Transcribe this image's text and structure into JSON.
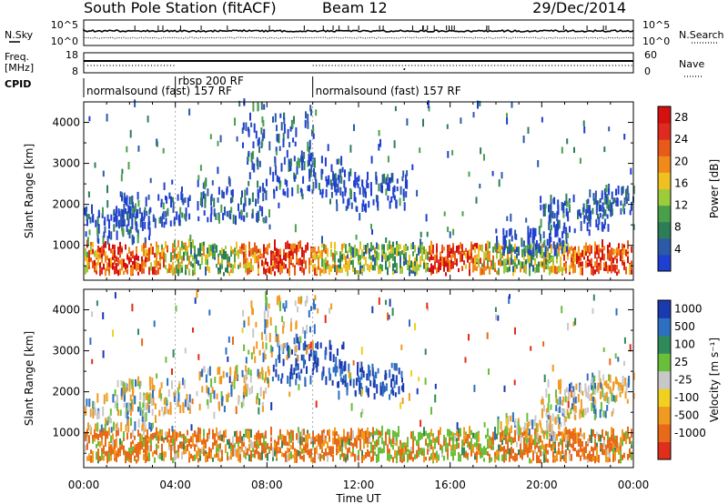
{
  "header": {
    "station": "South Pole Station (fitACF)",
    "beam": "Beam 12",
    "date": "29/Dec/2014"
  },
  "summary": {
    "nsky_label": "N.Sky",
    "nsky_ticks": [
      "10^5",
      "10^0"
    ],
    "nsearch_label": "N.Search",
    "nsearch_ticks": [
      "10^5",
      "10^0"
    ],
    "freq_label_1": "Freq.",
    "freq_label_2": "[MHz]",
    "freq_ticks": [
      "18",
      "8"
    ],
    "nave_label": "Nave",
    "nave_ticks": [
      "60",
      "0"
    ],
    "cpid_label": "CPID",
    "cpid_segments": [
      {
        "name": "normalsound (fast) 157 RF",
        "start": 0,
        "end": 4
      },
      {
        "name": "rbsp 200 RF",
        "start": 4,
        "end": 10
      },
      {
        "name": "normalsound (fast) 157 RF",
        "start": 10,
        "end": 24
      }
    ]
  },
  "colors": {
    "power": [
      "#1f3fd0",
      "#2d5aa8",
      "#2e7d59",
      "#4aa04a",
      "#9ccc3c",
      "#f0c020",
      "#f08a1a",
      "#e85a18",
      "#e02a20",
      "#d41010"
    ],
    "velocity": [
      "#1a3ab0",
      "#2d6fc0",
      "#2f8a5a",
      "#6abf3a",
      "#c8c8c8",
      "#f0d020",
      "#f09a20",
      "#e86a18",
      "#e02e1c"
    ]
  },
  "chart_data": [
    {
      "type": "heatmap",
      "name": "power-panel",
      "ylabel": "Slant Range [km]",
      "x_range": [
        0,
        24
      ],
      "ylim": [
        150,
        4500
      ],
      "y_ticks": [
        "1000",
        "2000",
        "3000",
        "4000"
      ],
      "x_ticks": [
        "00:00",
        "04:00",
        "08:00",
        "12:00",
        "16:00",
        "20:00",
        "00:00"
      ],
      "colorbar": {
        "label": "Power [dB]",
        "ticks": [
          "4",
          "8",
          "12",
          "16",
          "20",
          "24",
          "28"
        ],
        "range": [
          0,
          30
        ]
      }
    },
    {
      "type": "heatmap",
      "name": "velocity-panel",
      "ylabel": "Slant Range [km]",
      "xlabel": "Time UT",
      "x_range": [
        0,
        24
      ],
      "ylim": [
        150,
        4500
      ],
      "y_ticks": [
        "1000",
        "2000",
        "3000",
        "4000"
      ],
      "x_ticks": [
        "00:00",
        "04:00",
        "08:00",
        "12:00",
        "16:00",
        "20:00",
        "00:00"
      ],
      "colorbar": {
        "label": "Velocity [m s⁻¹]",
        "ticks": [
          "1000",
          "500",
          "100",
          "25",
          "-25",
          "-100",
          "-500",
          "-1000"
        ]
      }
    }
  ]
}
